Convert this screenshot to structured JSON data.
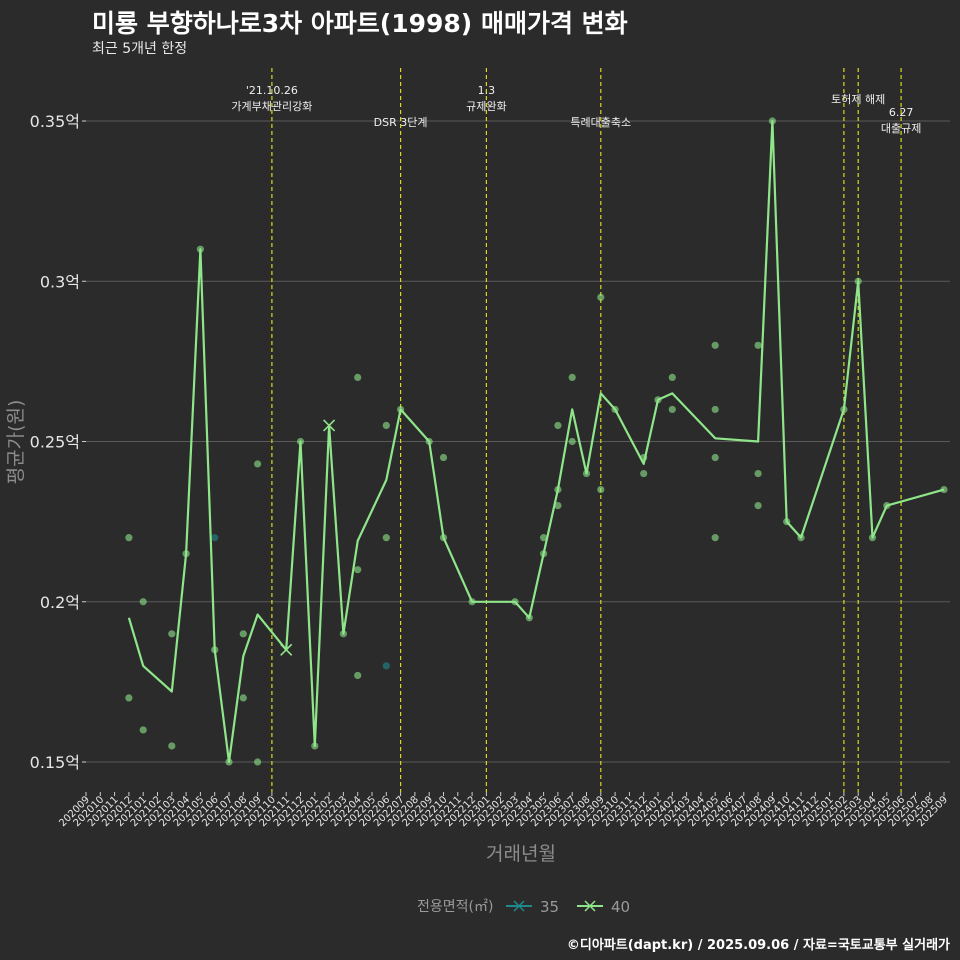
{
  "title": "미룡 부향하나로3차 아파트(1998) 매매가격 변화",
  "subtitle": "최근 5개년 한정",
  "caption": "©디아파트(dapt.kr) / 2025.09.06 / 자료=국토교통부 실거래가",
  "chart_data": {
    "type": "line",
    "xlabel": "거래년월",
    "ylabel": "평균가(원)",
    "ylim": [
      0.14,
      0.365
    ],
    "yticks": [
      {
        "value": 0.15,
        "label": "0.15억"
      },
      {
        "value": 0.2,
        "label": "0.2억"
      },
      {
        "value": 0.25,
        "label": "0.25억"
      },
      {
        "value": 0.3,
        "label": "0.3억"
      },
      {
        "value": 0.35,
        "label": "0.35억"
      }
    ],
    "grid": true,
    "categories": [
      "202009",
      "202010",
      "202011",
      "202012",
      "202101",
      "202102",
      "202103",
      "202104",
      "202105",
      "202106",
      "202107",
      "202108",
      "202109",
      "202110",
      "202111",
      "202112",
      "202201",
      "202202",
      "202203",
      "202204",
      "202205",
      "202206",
      "202207",
      "202208",
      "202209",
      "202210",
      "202211",
      "202212",
      "202301",
      "202302",
      "202303",
      "202304",
      "202305",
      "202306",
      "202307",
      "202308",
      "202309",
      "202310",
      "202311",
      "202312",
      "202401",
      "202402",
      "202403",
      "202404",
      "202405",
      "202406",
      "202407",
      "202408",
      "202409",
      "202410",
      "202411",
      "202412",
      "202501",
      "202502",
      "202503",
      "202504",
      "202505",
      "202506",
      "202507",
      "202508",
      "202509"
    ],
    "legend": {
      "title": "전용면적(㎡)",
      "position": "bottom",
      "items": [
        {
          "name": "35",
          "color": "#1f8a8a"
        },
        {
          "name": "40",
          "color": "#8fe68a"
        }
      ]
    },
    "events": [
      {
        "x": "202110",
        "lines": [
          "'21.10.26",
          "가계부채관리강화"
        ],
        "level": "top"
      },
      {
        "x": "202207",
        "lines": [
          "DSR 3단계"
        ],
        "level": "mid"
      },
      {
        "x": "202301",
        "lines": [
          "1.3",
          "규제완화"
        ],
        "level": "top"
      },
      {
        "x": "202309",
        "lines": [
          "특례대출축소"
        ],
        "level": "mid"
      },
      {
        "x": "202502",
        "lines": [],
        "level": "top"
      },
      {
        "x": "202503",
        "lines": [
          "토허제 해제"
        ],
        "level": "upper"
      },
      {
        "x": "202506",
        "lines": [
          "6.27",
          "대출규제"
        ],
        "level": "low"
      }
    ],
    "series": [
      {
        "name": "40",
        "color": "#8fe68a",
        "line": [
          [
            "202012",
            0.195
          ],
          [
            "202101",
            0.18
          ],
          [
            "202103",
            0.172
          ],
          [
            "202104",
            0.215
          ],
          [
            "202105",
            0.31
          ],
          [
            "202106",
            0.185
          ],
          [
            "202107",
            0.15
          ],
          [
            "202108",
            0.183
          ],
          [
            "202109",
            0.196
          ],
          [
            "202111",
            0.185
          ],
          [
            "202112",
            0.25
          ],
          [
            "202201",
            0.155
          ],
          [
            "202202",
            0.255
          ],
          [
            "202203",
            0.19
          ],
          [
            "202204",
            0.219
          ],
          [
            "202206",
            0.238
          ],
          [
            "202207",
            0.26
          ],
          [
            "202209",
            0.25
          ],
          [
            "202210",
            0.22
          ],
          [
            "202212",
            0.2
          ],
          [
            "202303",
            0.2
          ],
          [
            "202304",
            0.195
          ],
          [
            "202305",
            0.215
          ],
          [
            "202306",
            0.235
          ],
          [
            "202307",
            0.26
          ],
          [
            "202308",
            0.24
          ],
          [
            "202309",
            0.265
          ],
          [
            "202310",
            0.26
          ],
          [
            "202312",
            0.243
          ],
          [
            "202401",
            0.263
          ],
          [
            "202402",
            0.265
          ],
          [
            "202405",
            0.251
          ],
          [
            "202408",
            0.25
          ],
          [
            "202409",
            0.35
          ],
          [
            "202410",
            0.225
          ],
          [
            "202411",
            0.22
          ],
          [
            "202502",
            0.26
          ],
          [
            "202503",
            0.3
          ],
          [
            "202504",
            0.22
          ],
          [
            "202505",
            0.23
          ],
          [
            "202509",
            0.235
          ]
        ],
        "cross_markers": [
          [
            "202111",
            0.185
          ],
          [
            "202202",
            0.255
          ]
        ],
        "points": [
          [
            "202012",
            0.22
          ],
          [
            "202012",
            0.17
          ],
          [
            "202101",
            0.2
          ],
          [
            "202101",
            0.16
          ],
          [
            "202103",
            0.19
          ],
          [
            "202103",
            0.155
          ],
          [
            "202104",
            0.215
          ],
          [
            "202105",
            0.31
          ],
          [
            "202106",
            0.185
          ],
          [
            "202107",
            0.15
          ],
          [
            "202108",
            0.19
          ],
          [
            "202108",
            0.17
          ],
          [
            "202109",
            0.243
          ],
          [
            "202109",
            0.15
          ],
          [
            "202112",
            0.25
          ],
          [
            "202201",
            0.155
          ],
          [
            "202203",
            0.19
          ],
          [
            "202204",
            0.27
          ],
          [
            "202204",
            0.21
          ],
          [
            "202204",
            0.177
          ],
          [
            "202206",
            0.255
          ],
          [
            "202206",
            0.22
          ],
          [
            "202207",
            0.26
          ],
          [
            "202209",
            0.25
          ],
          [
            "202210",
            0.245
          ],
          [
            "202210",
            0.22
          ],
          [
            "202212",
            0.2
          ],
          [
            "202303",
            0.2
          ],
          [
            "202304",
            0.195
          ],
          [
            "202305",
            0.22
          ],
          [
            "202305",
            0.215
          ],
          [
            "202306",
            0.255
          ],
          [
            "202306",
            0.235
          ],
          [
            "202306",
            0.23
          ],
          [
            "202307",
            0.27
          ],
          [
            "202307",
            0.25
          ],
          [
            "202308",
            0.24
          ],
          [
            "202309",
            0.295
          ],
          [
            "202309",
            0.235
          ],
          [
            "202310",
            0.26
          ],
          [
            "202312",
            0.245
          ],
          [
            "202312",
            0.24
          ],
          [
            "202401",
            0.263
          ],
          [
            "202402",
            0.27
          ],
          [
            "202402",
            0.26
          ],
          [
            "202405",
            0.28
          ],
          [
            "202405",
            0.26
          ],
          [
            "202405",
            0.245
          ],
          [
            "202405",
            0.22
          ],
          [
            "202408",
            0.28
          ],
          [
            "202408",
            0.24
          ],
          [
            "202408",
            0.23
          ],
          [
            "202409",
            0.35
          ],
          [
            "202410",
            0.225
          ],
          [
            "202411",
            0.22
          ],
          [
            "202502",
            0.26
          ],
          [
            "202503",
            0.3
          ],
          [
            "202504",
            0.22
          ],
          [
            "202505",
            0.23
          ],
          [
            "202509",
            0.235
          ]
        ]
      },
      {
        "name": "35",
        "color": "#1f8a8a",
        "line": [],
        "points": [
          [
            "202106",
            0.22
          ],
          [
            "202206",
            0.18
          ]
        ]
      }
    ]
  }
}
